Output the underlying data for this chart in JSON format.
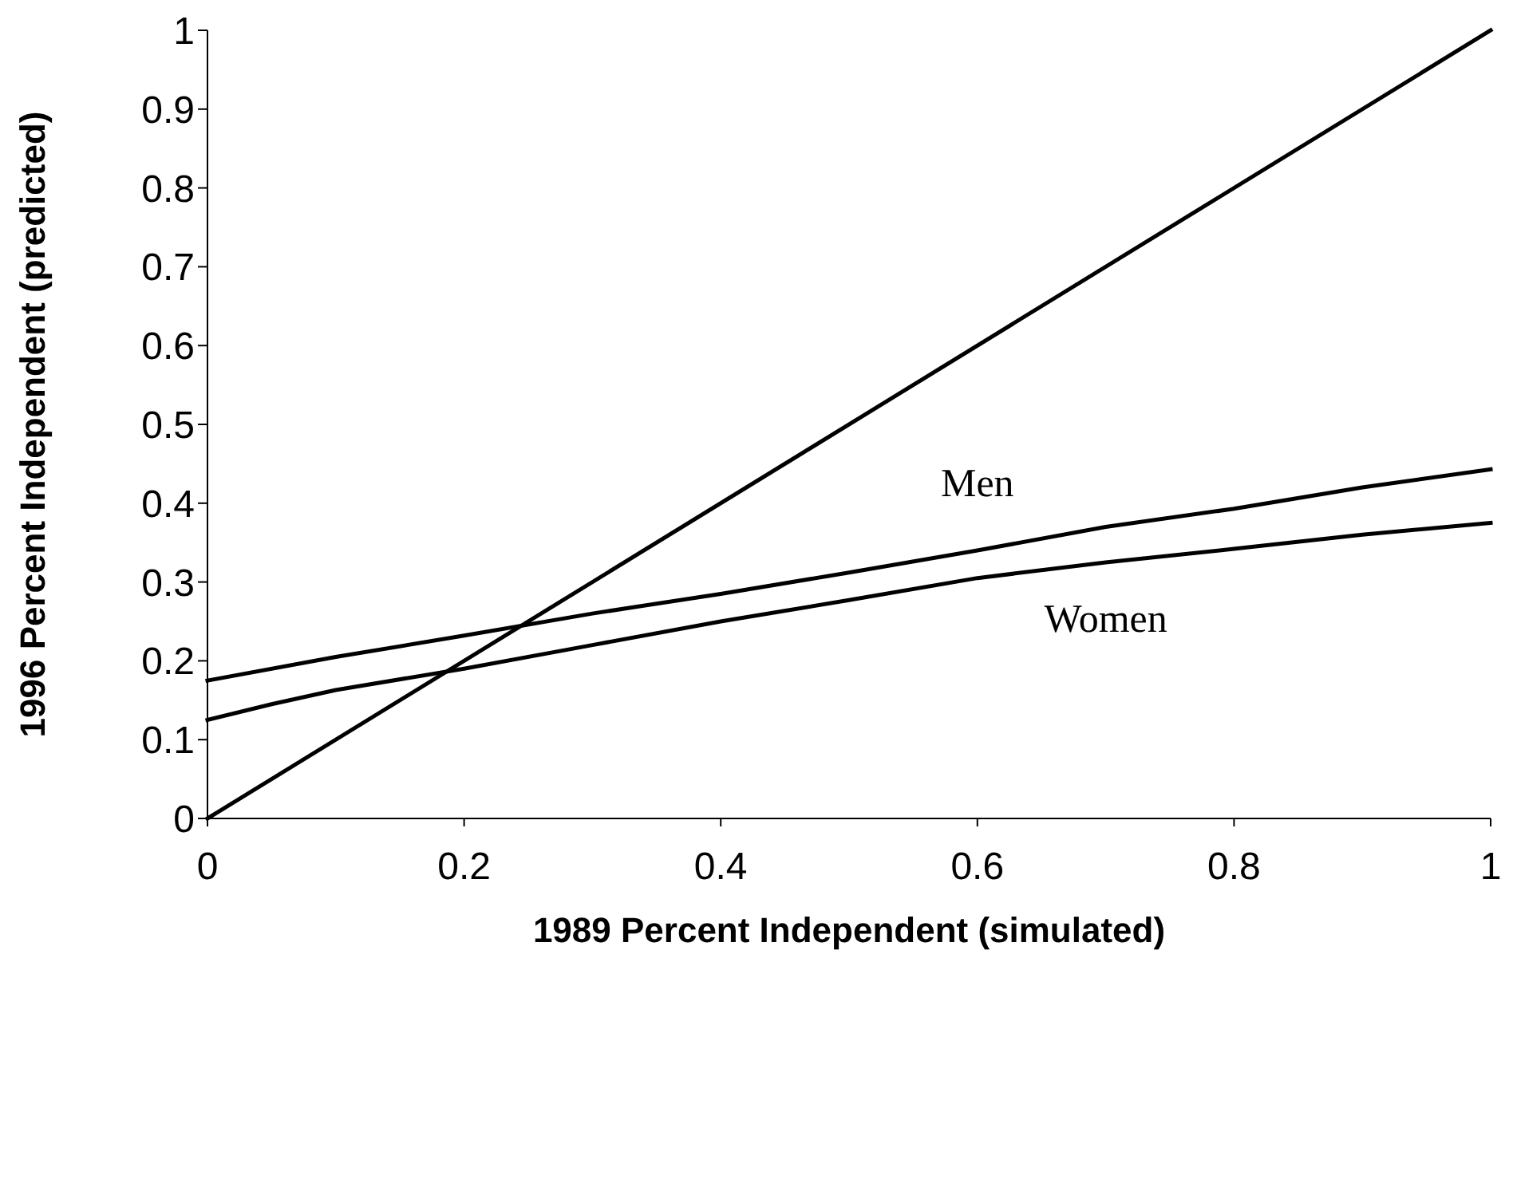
{
  "chart_data": {
    "type": "line",
    "xlabel": "1989 Percent Independent (simulated)",
    "ylabel": "1996 Percent Independent (predicted)",
    "xlim": [
      0,
      1
    ],
    "xticks": [
      0,
      0.2,
      0.4,
      0.6,
      0.8,
      1
    ],
    "ylim": [
      0,
      1
    ],
    "yticks": [
      0,
      0.1,
      0.2,
      0.3,
      0.4,
      0.5,
      0.6,
      0.7,
      0.8,
      0.9,
      1
    ],
    "grid": false,
    "legend": false,
    "marker": "none",
    "line_style": "solid",
    "series": [
      {
        "name": "Men",
        "color": "#000000",
        "x": [
          0,
          0.1,
          0.2,
          0.3,
          0.4,
          0.5,
          0.6,
          0.7,
          0.8,
          0.9,
          1
        ],
        "values": [
          0.175,
          0.205,
          0.232,
          0.26,
          0.285,
          0.312,
          0.34,
          0.37,
          0.393,
          0.42,
          0.443
        ]
      },
      {
        "name": "Women",
        "color": "#000000",
        "x": [
          0,
          0.05,
          0.1,
          0.2,
          0.3,
          0.4,
          0.5,
          0.6,
          0.7,
          0.8,
          0.9,
          1
        ],
        "values": [
          0.125,
          0.145,
          0.163,
          0.19,
          0.22,
          0.25,
          0.277,
          0.305,
          0.325,
          0.342,
          0.36,
          0.375
        ]
      },
      {
        "color": "#000000",
        "x": [
          0,
          1
        ],
        "values": [
          0,
          1
        ]
      }
    ]
  }
}
